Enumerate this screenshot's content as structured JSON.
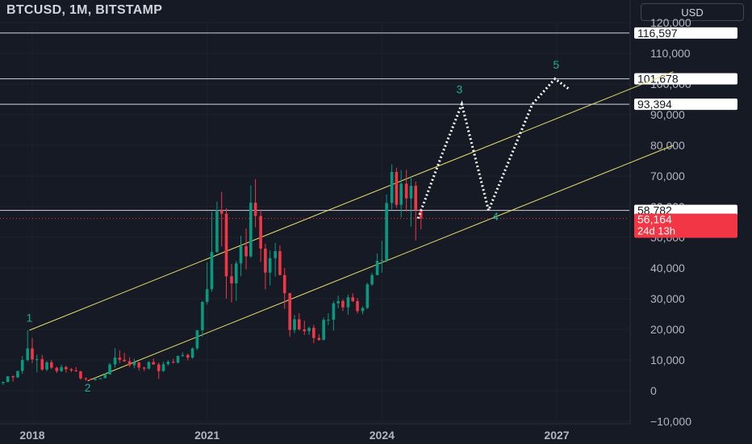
{
  "header": {
    "title": "BTCUSD, 1M, BITSTAMP",
    "currency_button": "USD"
  },
  "colors": {
    "background": "#161a25",
    "up": "#089981",
    "down": "#f23645",
    "grid": "#1e222d",
    "channel": "#e8e06a",
    "wave_label": "#22ab94",
    "current_price_tag": "#f23645"
  },
  "chart_data": {
    "type": "candlestick",
    "y_axis": {
      "min": -10000,
      "max": 120000,
      "ticks": [
        -10000,
        0,
        10000,
        20000,
        30000,
        40000,
        50000,
        60000,
        70000,
        80000,
        90000,
        100000,
        110000,
        120000
      ],
      "tick_labels": [
        "−10,000",
        "0",
        "10,000",
        "20,000",
        "30,000",
        "40,000",
        "50,000",
        "60,000",
        "70,000",
        "80,000",
        "90,000",
        "100,000",
        "110,000",
        "120,000"
      ]
    },
    "x_axis": {
      "ticks": [
        2018,
        2021,
        2024,
        2027
      ],
      "tick_labels": [
        "2018",
        "2021",
        "2024",
        "2027"
      ],
      "range": [
        2016.9,
        2029.0
      ]
    },
    "horizontal_levels": [
      {
        "value": 116597,
        "label": "116,597"
      },
      {
        "value": 101678,
        "label": "101,678"
      },
      {
        "value": 93394,
        "label": "93,394"
      },
      {
        "value": 58782,
        "label": "58,782"
      }
    ],
    "current_price": {
      "value": 56164,
      "label": "56,164",
      "countdown": "24d 13h"
    },
    "channel": {
      "upper": [
        [
          2017.95,
          19700
        ],
        [
          2029.0,
          104000
        ]
      ],
      "lower": [
        [
          2018.95,
          3200
        ],
        [
          2029.0,
          80000
        ]
      ]
    },
    "wave_labels": [
      {
        "label": "1",
        "x": 2017.95,
        "y": 22500
      },
      {
        "label": "2",
        "x": 2018.95,
        "y": -300
      },
      {
        "label": "3",
        "x": 2025.33,
        "y": 97000
      },
      {
        "label": "4",
        "x": 2025.95,
        "y": 55500
      },
      {
        "label": "5",
        "x": 2026.99,
        "y": 105000
      }
    ],
    "projection_path": [
      [
        2024.62,
        56164
      ],
      [
        2025.05,
        78000
      ],
      [
        2025.37,
        93394
      ],
      [
        2025.83,
        58782
      ],
      [
        2026.58,
        93394
      ],
      [
        2026.97,
        101678
      ],
      [
        2027.2,
        98500
      ]
    ],
    "candles": [
      [
        2017.0,
        960,
        1000,
        900,
        970
      ],
      [
        2017.08,
        970,
        1200,
        900,
        1180
      ],
      [
        2017.17,
        1180,
        1300,
        900,
        1070
      ],
      [
        2017.25,
        1070,
        1450,
        1060,
        1350
      ],
      [
        2017.33,
        1350,
        2800,
        1340,
        2300
      ],
      [
        2017.42,
        2300,
        2980,
        2100,
        2480
      ],
      [
        2017.5,
        2480,
        2900,
        1900,
        2870
      ],
      [
        2017.58,
        2870,
        4750,
        2700,
        4700
      ],
      [
        2017.67,
        4700,
        4980,
        2980,
        4340
      ],
      [
        2017.75,
        4340,
        6450,
        4100,
        6450
      ],
      [
        2017.83,
        6450,
        11300,
        5500,
        10000
      ],
      [
        2017.92,
        10000,
        19700,
        9500,
        13800
      ],
      [
        2018.0,
        13800,
        17200,
        9000,
        10200
      ],
      [
        2018.08,
        10200,
        11800,
        6000,
        10300
      ],
      [
        2018.17,
        10300,
        11700,
        6500,
        6900
      ],
      [
        2018.25,
        6900,
        9700,
        6400,
        9250
      ],
      [
        2018.33,
        9250,
        10000,
        7000,
        7500
      ],
      [
        2018.42,
        7500,
        7800,
        5800,
        6400
      ],
      [
        2018.5,
        6400,
        8500,
        6100,
        7700
      ],
      [
        2018.58,
        7700,
        8200,
        5900,
        7000
      ],
      [
        2018.67,
        7000,
        7400,
        6100,
        6600
      ],
      [
        2018.75,
        6600,
        7700,
        6200,
        6300
      ],
      [
        2018.83,
        6300,
        6500,
        3600,
        4000
      ],
      [
        2018.92,
        4000,
        4400,
        3200,
        3700
      ],
      [
        2019.0,
        3700,
        4100,
        3400,
        3450
      ],
      [
        2019.08,
        3450,
        4200,
        3400,
        3800
      ],
      [
        2019.17,
        3800,
        4100,
        3700,
        4100
      ],
      [
        2019.25,
        4100,
        5600,
        4050,
        5300
      ],
      [
        2019.33,
        5300,
        9100,
        5300,
        8550
      ],
      [
        2019.42,
        8550,
        13900,
        7500,
        10800
      ],
      [
        2019.5,
        10800,
        13200,
        9000,
        10100
      ],
      [
        2019.58,
        10100,
        12300,
        9400,
        9600
      ],
      [
        2019.67,
        9600,
        10900,
        7700,
        8300
      ],
      [
        2019.75,
        8300,
        10500,
        7300,
        9200
      ],
      [
        2019.83,
        9200,
        9500,
        6500,
        7550
      ],
      [
        2019.92,
        7550,
        7750,
        6400,
        7200
      ],
      [
        2020.0,
        7200,
        9600,
        6900,
        9350
      ],
      [
        2020.08,
        9350,
        10500,
        8500,
        8550
      ],
      [
        2020.17,
        8550,
        9200,
        3850,
        6400
      ],
      [
        2020.25,
        6400,
        9500,
        6200,
        8650
      ],
      [
        2020.33,
        8650,
        10000,
        8100,
        9450
      ],
      [
        2020.42,
        9450,
        10400,
        8900,
        9150
      ],
      [
        2020.5,
        9150,
        11400,
        8900,
        11350
      ],
      [
        2020.58,
        11350,
        12500,
        11000,
        11650
      ],
      [
        2020.67,
        11650,
        12100,
        9900,
        10800
      ],
      [
        2020.75,
        10800,
        14100,
        10400,
        13800
      ],
      [
        2020.83,
        13800,
        19800,
        13200,
        19700
      ],
      [
        2020.92,
        19700,
        29300,
        17600,
        28950
      ],
      [
        2021.0,
        28950,
        41900,
        28100,
        33100
      ],
      [
        2021.08,
        33100,
        58300,
        32300,
        45200
      ],
      [
        2021.17,
        45200,
        61700,
        45000,
        58800
      ],
      [
        2021.25,
        58800,
        64800,
        47000,
        57700
      ],
      [
        2021.33,
        57700,
        59500,
        30000,
        37300
      ],
      [
        2021.42,
        37300,
        41300,
        28800,
        35000
      ],
      [
        2021.5,
        35000,
        42300,
        29300,
        41500
      ],
      [
        2021.58,
        41500,
        50500,
        37300,
        47100
      ],
      [
        2021.67,
        47100,
        52900,
        39600,
        43800
      ],
      [
        2021.75,
        43800,
        66900,
        43300,
        61300
      ],
      [
        2021.83,
        61300,
        69000,
        53300,
        57000
      ],
      [
        2021.92,
        57000,
        59100,
        42000,
        46300
      ],
      [
        2022.0,
        46300,
        47900,
        33000,
        38500
      ],
      [
        2022.08,
        38500,
        45800,
        34300,
        43200
      ],
      [
        2022.17,
        43200,
        48200,
        37200,
        45500
      ],
      [
        2022.25,
        45500,
        47400,
        37700,
        37700
      ],
      [
        2022.33,
        37700,
        40000,
        26700,
        31800
      ],
      [
        2022.42,
        31800,
        31900,
        17600,
        19800
      ],
      [
        2022.5,
        19800,
        24700,
        18800,
        23300
      ],
      [
        2022.58,
        23300,
        25200,
        19600,
        20000
      ],
      [
        2022.67,
        20000,
        22800,
        18200,
        19400
      ],
      [
        2022.75,
        19400,
        20900,
        18200,
        20500
      ],
      [
        2022.83,
        20500,
        21500,
        15500,
        17200
      ],
      [
        2022.92,
        17200,
        18400,
        16300,
        16550
      ],
      [
        2023.0,
        16550,
        23900,
        16500,
        23100
      ],
      [
        2023.08,
        23100,
        25300,
        21400,
        23150
      ],
      [
        2023.17,
        23150,
        29200,
        19600,
        28500
      ],
      [
        2023.25,
        28500,
        31000,
        26900,
        29250
      ],
      [
        2023.33,
        29250,
        29800,
        26000,
        27200
      ],
      [
        2023.42,
        27200,
        31400,
        24800,
        30450
      ],
      [
        2023.5,
        30450,
        31800,
        28900,
        29200
      ],
      [
        2023.58,
        29200,
        30200,
        25200,
        25950
      ],
      [
        2023.67,
        25950,
        27500,
        24900,
        27000
      ],
      [
        2023.75,
        27000,
        35200,
        26600,
        34650
      ],
      [
        2023.83,
        34650,
        38400,
        34100,
        37700
      ],
      [
        2023.92,
        37700,
        44700,
        37600,
        42300
      ],
      [
        2024.0,
        42300,
        48900,
        38500,
        42600
      ],
      [
        2024.08,
        42600,
        64000,
        41900,
        61200
      ],
      [
        2024.17,
        61200,
        73800,
        59100,
        71300
      ],
      [
        2024.25,
        71300,
        72700,
        59600,
        60600
      ],
      [
        2024.33,
        60600,
        71900,
        56500,
        67500
      ],
      [
        2024.42,
        67500,
        72000,
        58400,
        62700
      ],
      [
        2024.5,
        62700,
        70000,
        53500,
        66800
      ],
      [
        2024.58,
        66800,
        68200,
        49000,
        58980
      ],
      [
        2024.67,
        58980,
        59500,
        52600,
        56164
      ]
    ]
  }
}
